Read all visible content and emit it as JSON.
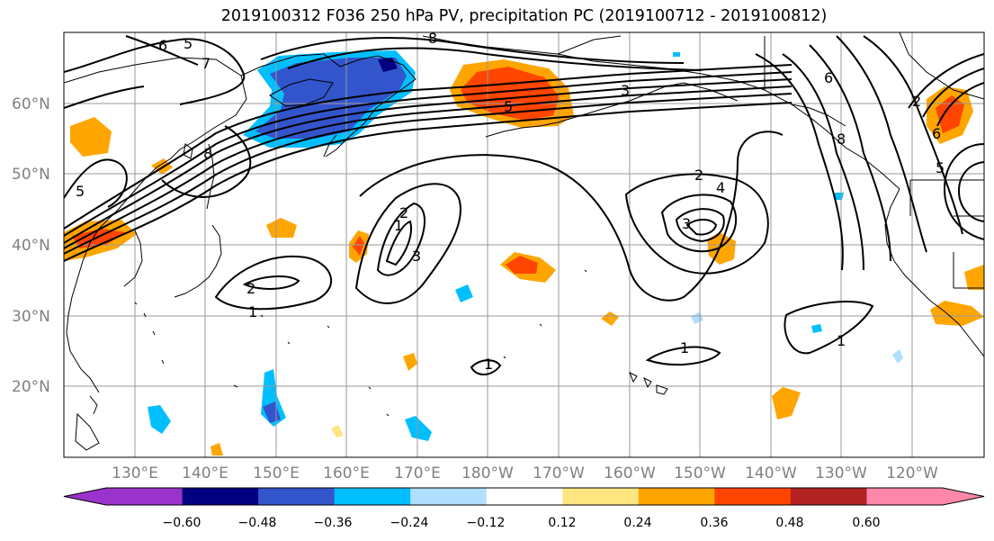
{
  "title": "2019100312 F036 250 hPa PV, precipitation PC (2019100712 - 2019100812)",
  "latitude_labels": [
    "60°N",
    "50°N",
    "40°N",
    "30°N",
    "20°N"
  ],
  "longitude_labels": [
    "130°E",
    "140°E",
    "150°E",
    "160°E",
    "170°E",
    "180°W",
    "170°W",
    "160°W",
    "150°W",
    "140°W",
    "130°W",
    "120°W"
  ],
  "pv_contour_labels": [
    "6",
    "5",
    "7",
    "5",
    "8",
    "1",
    "2",
    "3",
    "2",
    "4",
    "3",
    "2",
    "5",
    "6",
    "1",
    "2",
    "1",
    "1",
    "1",
    "5",
    "8",
    "3",
    "6",
    "8"
  ],
  "colorbar": {
    "colors": [
      "#9933cc",
      "#000080",
      "#3355cc",
      "#00bfff",
      "#b0e0ff",
      "#ffffff",
      "#ffe680",
      "#ffa500",
      "#ff4500",
      "#b22222",
      "#ff88aa"
    ],
    "tick_labels": [
      "−0.60",
      "−0.48",
      "−0.36",
      "−0.24",
      "−0.12",
      "0.12",
      "0.24",
      "0.36",
      "0.48",
      "0.60"
    ]
  },
  "style_colors": {
    "grid": "#999999",
    "coast": "#000000",
    "contour": "#000000",
    "axis_label": "#808080"
  }
}
